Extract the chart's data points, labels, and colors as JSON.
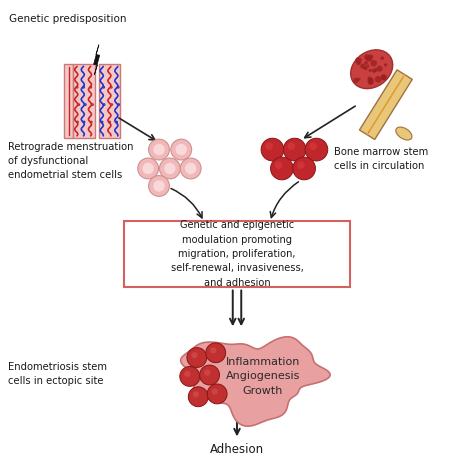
{
  "background_color": "#ffffff",
  "text_color": "#1a1a1a",
  "labels": {
    "genetic": "Genetic predisposition",
    "retrograde": "Retrograde menstruation\nof dysfunctional\nendometrial stem cells",
    "bone_marrow": "Bone marrow stem\ncells in circulation",
    "box_text": "Genetic and epigenetic\nmodulation promoting\nmigration, proliferation,\nself-renewal, invasiveness,\nand adhesion",
    "ectopic": "Endometriosis stem\ncells in ectopic site",
    "blob_text": "Inflammation\nAngiogenesis\nGrowth",
    "adhesion": "Adhesion"
  },
  "colors": {
    "light_pink_cell": "#f0b8b8",
    "light_pink_cell_inner": "#f8d8d8",
    "dark_red_cell": "#c0272d",
    "box_border": "#d46060",
    "box_fill": "#ffffff",
    "blob_fill": "#e8a0a0",
    "blob_border": "#c87070",
    "arrow_color": "#222222",
    "bolt_color": "#111111",
    "tissue_pink": "#f5c8c8",
    "tissue_border": "#cc7777",
    "tissue_red": "#cc2222",
    "tissue_blue": "#2233cc",
    "bone_outer": "#d4a060",
    "bone_border": "#a07040",
    "bone_marrow_red": "#cc3333",
    "bone_shaft": "#e8c878",
    "bone_inner_line": "#d4903a"
  }
}
